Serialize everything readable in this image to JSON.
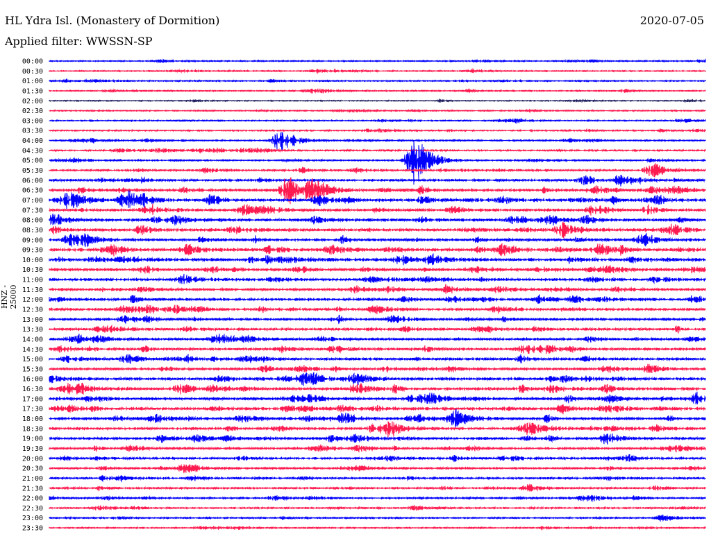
{
  "header": {
    "station": "HL Ydra Isl. (Monastery of Dormition)",
    "date": "2020-07-05",
    "filter": "Applied filter: WWSSN-SP"
  },
  "chart_data": {
    "type": "line",
    "title": "HL Ydra Isl. (Monastery of Dormition)",
    "ylabel": "HNZ - 25000",
    "xlabel": "",
    "minutes_per_row": 30,
    "row_labels": [
      "00:00",
      "00:30",
      "01:00",
      "01:30",
      "02:00",
      "02:30",
      "03:00",
      "03:30",
      "04:00",
      "04:30",
      "05:00",
      "05:30",
      "06:00",
      "06:30",
      "07:00",
      "07:30",
      "08:00",
      "08:30",
      "09:00",
      "09:30",
      "10:00",
      "10:30",
      "11:00",
      "11:30",
      "12:00",
      "12:30",
      "13:00",
      "13:30",
      "14:00",
      "14:30",
      "15:00",
      "15:30",
      "16:00",
      "16:30",
      "17:00",
      "17:30",
      "18:00",
      "18:30",
      "19:00",
      "19:30",
      "20:00",
      "20:30",
      "21:00",
      "21:30",
      "22:00",
      "22:30",
      "23:00",
      "23:30"
    ],
    "colors": [
      "#0000ff",
      "#ff1a4f"
    ],
    "noise_level": [
      1,
      1,
      1,
      1,
      0.6,
      1,
      1,
      1.2,
      1.3,
      1.5,
      1.5,
      2,
      3,
      4,
      4,
      4,
      4,
      4,
      4,
      4.5,
      4.5,
      4,
      3.5,
      3.5,
      3.5,
      3.5,
      3.5,
      3.5,
      3.5,
      3.5,
      3.5,
      3.5,
      4,
      4,
      4,
      4,
      4,
      3.5,
      3.5,
      3,
      2.5,
      2.5,
      2.2,
      2,
      1.8,
      1.5,
      1.3,
      1.2
    ],
    "events": [
      {
        "row": 10,
        "minute": 16.7,
        "amplitude": 40
      },
      {
        "row": 11,
        "minute": 27.6,
        "amplitude": 10
      },
      {
        "row": 13,
        "minute": 11.0,
        "amplitude": 25
      },
      {
        "row": 14,
        "minute": 1.0,
        "amplitude": 14
      },
      {
        "row": 14,
        "minute": 3.6,
        "amplitude": 14
      },
      {
        "row": 8,
        "minute": 10.6,
        "amplitude": 18
      },
      {
        "row": 36,
        "minute": 18.6,
        "amplitude": 12
      },
      {
        "row": 37,
        "minute": 22.0,
        "amplitude": 10
      },
      {
        "row": 17,
        "minute": 23.5,
        "amplitude": 10
      },
      {
        "row": 44,
        "minute": 24.6,
        "amplitude": 6
      }
    ]
  }
}
